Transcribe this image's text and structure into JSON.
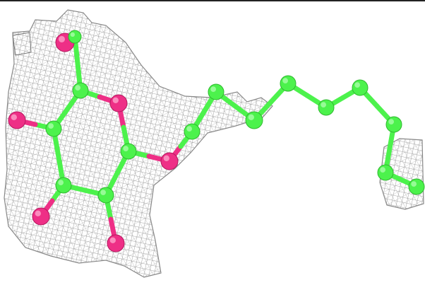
{
  "scene": {
    "background": "#ffffff",
    "colors": {
      "carbon": "#4cf24c",
      "carbon_highlight": "#b8ffb8",
      "oxygen": "#ee2f86",
      "oxygen_highlight": "#ffb3d4",
      "density_mesh": "#8a8a8a",
      "border": "#222222"
    },
    "molecule": {
      "representation": "ball-and-stick",
      "elements_shown": [
        "C",
        "O"
      ],
      "density_map": "mesh"
    }
  }
}
